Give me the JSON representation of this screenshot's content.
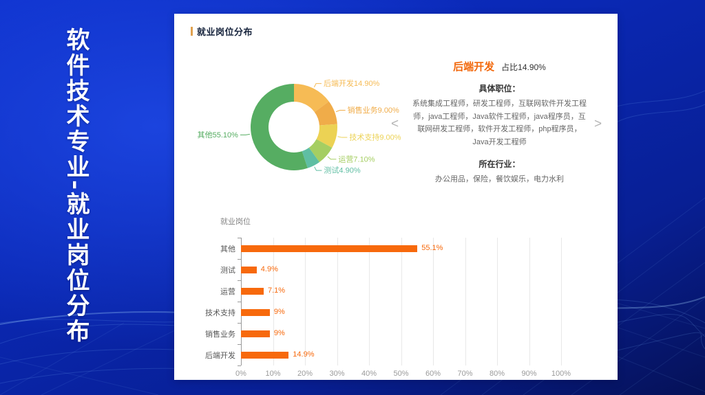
{
  "slide": {
    "vertical_title": "软件技术专业-就业岗位分布"
  },
  "card": {
    "title": "就业岗位分布",
    "accent_color": "#E0A14F"
  },
  "detail": {
    "title": "后端开发",
    "title_color": "#F2690D",
    "share_label": "占比14.90%",
    "positions_label": "具体职位：",
    "positions": "系统集成工程师，研发工程师，互联网软件开发工程师，java工程师，Java软件工程师，java程序员，互联网研发工程师，软件开发工程师，php程序员，Java开发工程师",
    "industries_label": "所在行业：",
    "industries": "办公用品，保险，餐饮娱乐，电力水利",
    "prev_arrow": "<",
    "next_arrow": ">"
  },
  "chart_data": [
    {
      "type": "pie",
      "subtype": "donut",
      "title": "就业岗位分布",
      "labels": [
        "后端开发",
        "销售业务",
        "技术支持",
        "运营",
        "测试",
        "其他"
      ],
      "values": [
        14.9,
        9.0,
        9.0,
        7.1,
        4.9,
        55.1
      ],
      "display_labels": [
        "后端开发14.90%",
        "销售业务9.00%",
        "技术支持9.00%",
        "运营7.10%",
        "测试4.90%",
        "其他55.10%"
      ],
      "colors": [
        "#F6BB55",
        "#F0AC49",
        "#ECD254",
        "#A5CE62",
        "#5FBEA3",
        "#56AD62"
      ],
      "start_angle_deg": 0,
      "direction": "clockwise",
      "legend": "none"
    },
    {
      "type": "bar",
      "orientation": "horizontal",
      "title": "就业岗位",
      "categories": [
        "其他",
        "测试",
        "运营",
        "技术支持",
        "销售业务",
        "后端开发"
      ],
      "values": [
        55.1,
        4.9,
        7.1,
        9,
        9,
        14.9
      ],
      "value_labels": [
        "55.1%",
        "4.9%",
        "7.1%",
        "9%",
        "9%",
        "14.9%"
      ],
      "bar_color": "#F7690C",
      "xlim": [
        0,
        100
      ],
      "x_ticks": [
        "0%",
        "10%",
        "20%",
        "30%",
        "40%",
        "50%",
        "60%",
        "70%",
        "80%",
        "90%",
        "100%"
      ],
      "grid": true,
      "legend": "none"
    }
  ]
}
